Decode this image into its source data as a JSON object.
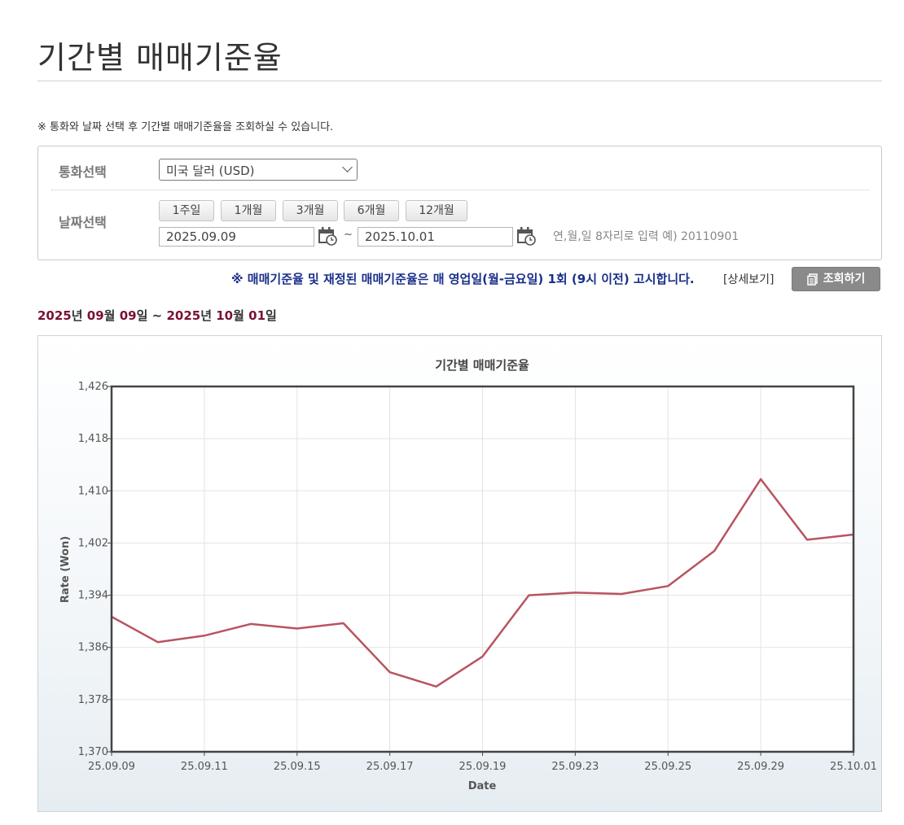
{
  "page": {
    "title": "기간별 매매기준율",
    "notice": "※ 통화와 날짜 선택 후 기간별 매매기준율을 조회하실 수 있습니다."
  },
  "search": {
    "currency_label": "통화선택",
    "currency_value": "미국 달러 (USD)",
    "date_label": "날짜선택",
    "period_buttons": [
      "1주일",
      "1개월",
      "3개월",
      "6개월",
      "12개월"
    ],
    "start_date": "2025.09.09",
    "end_date": "2025.10.01",
    "tilde": "~",
    "date_hint": "연,월,일 8자리로 입력 예) 20110901",
    "calendar_icon": "calendar-icon"
  },
  "announce": {
    "text": "※ 매매기준율 및 재정된 매매기준율은 매 영업일(월-금요일) 1회 (9시 이전) 고시합니다.",
    "detail_link": "[상세보기]",
    "search_button": "조회하기",
    "search_icon": "document-icon"
  },
  "range": {
    "start_year": "2025",
    "start_month": "09",
    "start_day": "09",
    "end_year": "2025",
    "end_month": "10",
    "end_day": "01",
    "year_unit": "년",
    "month_unit": "월",
    "day_unit": "일",
    "sep": "~"
  },
  "chart_data": {
    "type": "line",
    "title": "기간별 매매기준율",
    "xlabel": "Date",
    "ylabel": "Rate (Won)",
    "ylim": [
      1370,
      1426
    ],
    "yticks": [
      1370,
      1378,
      1386,
      1394,
      1402,
      1410,
      1418,
      1426
    ],
    "ytick_labels": [
      "1,370",
      "1,378",
      "1,386",
      "1,394",
      "1,402",
      "1,410",
      "1,418",
      "1,426"
    ],
    "xtick_labels": [
      "25.09.09",
      "25.09.11",
      "25.09.15",
      "25.09.17",
      "25.09.19",
      "25.09.23",
      "25.09.25",
      "25.09.29",
      "25.10.01"
    ],
    "x": [
      "25.09.09",
      "25.09.10",
      "25.09.11",
      "25.09.12",
      "25.09.15",
      "25.09.16",
      "25.09.17",
      "25.09.18",
      "25.09.19",
      "25.09.22",
      "25.09.23",
      "25.09.24",
      "25.09.25",
      "25.09.26",
      "25.09.29",
      "25.09.30",
      "25.10.01"
    ],
    "series": [
      {
        "values": [
          1390.7,
          1386.8,
          1387.8,
          1389.6,
          1388.9,
          1389.7,
          1382.2,
          1380.0,
          1384.6,
          1394.0,
          1394.4,
          1394.2,
          1395.4,
          1400.8,
          1411.8,
          1402.5,
          1403.3
        ],
        "color": "#b85460"
      }
    ],
    "grid": true,
    "line_color": "#b85460"
  }
}
